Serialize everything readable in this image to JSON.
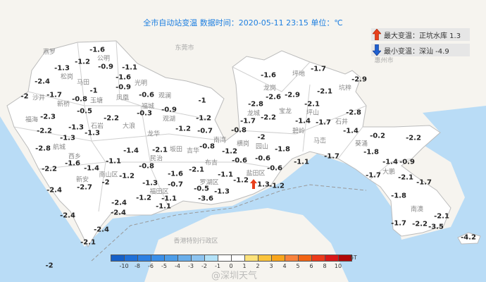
{
  "title": "全市自动站变温  数据时间：2020-05-11 23:15  单位：℃",
  "max_change": {
    "icon": "arrow-up-icon",
    "label": "最大变温：正坑水库 1.3",
    "color": "#e8401c"
  },
  "min_change": {
    "icon": "arrow-down-icon",
    "label": "最小变温：深汕 -4.9",
    "color": "#1e60d0"
  },
  "colors": {
    "sea": "#b9dcf6",
    "land": "#ffffff",
    "outside": "#f6f4ef",
    "boundary": "#c8c8c8"
  },
  "regions": [
    "东莞市",
    "惠州市",
    "香港特别行政区"
  ],
  "places": [
    "燕罗",
    "公明",
    "松岗",
    "马田",
    "光明",
    "玉塘",
    "沙井",
    "新桥",
    "凤凰",
    "观澜",
    "福城",
    "观湖",
    "福海",
    "石岩",
    "大浪",
    "航城",
    "西乡",
    "龙华",
    "坂田",
    "民治",
    "吉华",
    "南湾",
    "布吉",
    "南山区",
    "新安",
    "福田区",
    "罗湖区",
    "横岗",
    "龙岗",
    "坪地",
    "龙城",
    "宝龙",
    "坪山",
    "坑梓",
    "园山",
    "碧岭",
    "石井",
    "马峦",
    "盐田区",
    "葵涌",
    "大鹏",
    "南澳"
  ],
  "stations": [
    "-1.6",
    "-1.2",
    "-1.3",
    "-0.9",
    "-1.1",
    "-2.4",
    "-1.6",
    "-0.9",
    "-1.7",
    "-2",
    "-0.8",
    "-1",
    "-0.6",
    "-0.5",
    "-2.3",
    "-2.2",
    "-0.3",
    "-0.9",
    "-1",
    "-1.2",
    "-0.7",
    "-2.2",
    "-1.3",
    "-1.3",
    "-1.2",
    "-2.8",
    "-1.3",
    "-1.4",
    "-2.1",
    "-0.8",
    "-1.2",
    "-1.6",
    "-1.1",
    "-0.8",
    "-2.2",
    "-1.4",
    "-2",
    "-1.2",
    "-1.6",
    "-2.1",
    "-0.7",
    "-1.3",
    "-1.1",
    "-2.7",
    "-2.4",
    "-1.2",
    "-1.1",
    "-0.5",
    "-3.6",
    "-1.3",
    "-1.2",
    "1.3",
    "-1.2",
    "-2.4",
    "-2.4",
    "-1.1",
    "-2.4",
    "-2.4",
    "-2.1",
    "-2",
    "-1.6",
    "-1.7",
    "-2.9",
    "-2.6",
    "-2.9",
    "-2.1",
    "-2.8",
    "-2.1",
    "-1.7",
    "-2.2",
    "-0.8",
    "-1.4",
    "-1.7",
    "-2.8",
    "-1.4",
    "-2",
    "-1.8",
    "-0.2",
    "-2.2",
    "-1.8",
    "-0.6",
    "-0.6",
    "-0.6",
    "-1.1",
    "-1.7",
    "-1.4",
    "-0.9",
    "-1.7",
    "-2.1",
    "-1.7",
    "-1.8",
    "-2.1",
    "-1.7",
    "-2.2",
    "-3.5",
    "-4.2"
  ],
  "legend": {
    "label": "δT",
    "colors": [
      "#1560c8",
      "#1f70d8",
      "#2b7fe2",
      "#3b8fe8",
      "#4d9de8",
      "#6aaeea",
      "#8dc4f0",
      "#b3e2f8",
      "#ffffff",
      "#ffffff",
      "#fde27a",
      "#fbc43c",
      "#f8a51c",
      "#f8823c",
      "#f26414",
      "#ec3a1a",
      "#d81818",
      "#b00808"
    ],
    "ticks": [
      "-10",
      "-8",
      "-6",
      "-5",
      "-4",
      "-3",
      "-2",
      "-1",
      "0",
      "1",
      "2",
      "3",
      "4",
      "5",
      "6",
      "8",
      "10"
    ]
  },
  "watermark": "@深圳天气"
}
